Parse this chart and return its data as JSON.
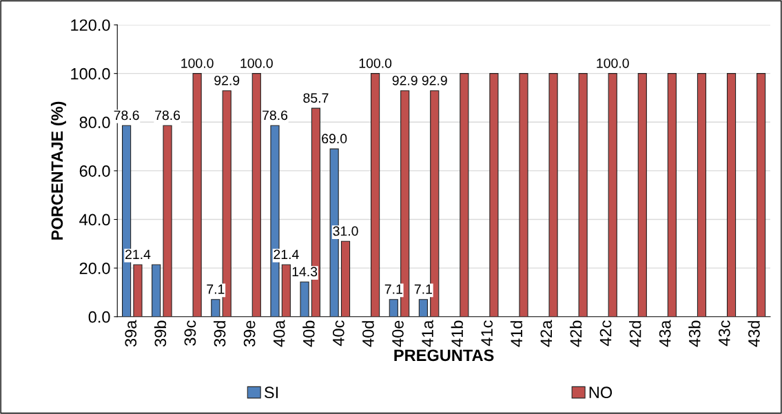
{
  "chart_data": {
    "type": "bar",
    "xlabel": "PREGUNTAS",
    "ylabel": "PORCENTAJE (%)",
    "categories": [
      "39a",
      "39b",
      "39c",
      "39d",
      "39e",
      "40a",
      "40b",
      "40c",
      "40d",
      "40e",
      "41a",
      "41b",
      "41c",
      "41d",
      "42a",
      "42b",
      "42c",
      "42d",
      "43a",
      "43b",
      "43c",
      "43d"
    ],
    "series": [
      {
        "name": "SI",
        "color": "#4f81bd",
        "values": [
          78.6,
          21.4,
          0,
          7.1,
          0,
          78.6,
          14.3,
          69.0,
          0,
          7.1,
          7.1,
          0,
          0,
          0,
          0,
          0,
          0,
          0,
          0,
          0,
          0,
          0
        ],
        "value_labels": [
          "78.6",
          null,
          null,
          "7.1",
          null,
          "78.6",
          "14.3",
          "69.0",
          null,
          "7.1",
          "7.1",
          null,
          null,
          null,
          null,
          null,
          null,
          null,
          null,
          null,
          null,
          null
        ]
      },
      {
        "name": "NO",
        "color": "#c0504d",
        "values": [
          21.4,
          78.6,
          100,
          92.9,
          100,
          21.4,
          85.7,
          31.0,
          100,
          92.9,
          92.9,
          100,
          100,
          100,
          100,
          100,
          100,
          100,
          100,
          100,
          100,
          100
        ],
        "value_labels": [
          "21.4",
          "78.6",
          "100.0",
          "92.9",
          "100.0",
          "21.4",
          "85.7",
          "31.0",
          "100.0",
          "92.9",
          "92.9",
          null,
          null,
          null,
          null,
          null,
          "100.0",
          null,
          null,
          null,
          null,
          null
        ]
      }
    ],
    "ylim": [
      0,
      120
    ],
    "yticks": [
      {
        "value": 0,
        "label": "0.0"
      },
      {
        "value": 20,
        "label": "20.0"
      },
      {
        "value": 40,
        "label": "40.0"
      },
      {
        "value": 60,
        "label": "60.0"
      },
      {
        "value": 80,
        "label": "80.0"
      },
      {
        "value": 100,
        "label": "100.0"
      },
      {
        "value": 120,
        "label": "120.0"
      }
    ],
    "grid": "y",
    "legend": "bottom"
  }
}
